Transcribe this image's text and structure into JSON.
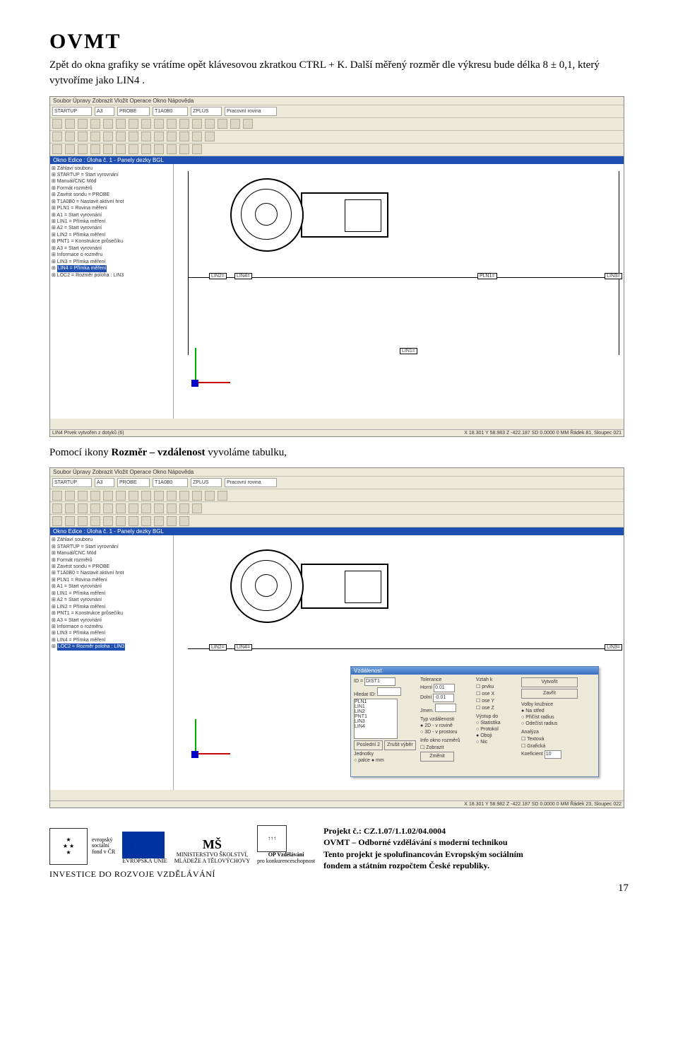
{
  "header_logo": "OVMT",
  "para1": "Zpět do okna grafiky se vrátíme opět klávesovou zkratkou CTRL + K. Další měřený rozměr dle výkresu bude délka 8 ± 0,1, který vytvoříme jako LIN4 .",
  "para2_pre": "Pomocí ikony ",
  "para2_bold": "Rozměr – vzdálenost",
  "para2_post": " vyvoláme tabulku,",
  "app": {
    "menubar": "Soubor  Úpravy  Zobrazit  Vložit  Operace  Okno  Nápověda",
    "tb1": {
      "f1": "STARTUP",
      "f2": "A3",
      "f3": "PROBE",
      "f4": "T1A0B0",
      "f5": "ZPLUS",
      "f6": "Pracovní rovina"
    },
    "title_strip": "Okno Edice : Úloha č. 1 - Panely dezky BGL",
    "tree": [
      "Záhlaví souboru",
      "STARTUP = Start vyrovnání",
      "Manuál/CNC Mód",
      "Formát rozměrů",
      "Zavést sondu = PROBE",
      "T1A0B0 = Nastavit aktivní hrot",
      "PLN1 = Rovina měření",
      "A1 = Start vyrovnání",
      "LIN1 = Přímka měření",
      "A2 = Start vyrovnání",
      "LIN2 = Přímka měření",
      "PNT1 = Konstrukce průsečíku",
      "A3 = Start vyrovnání",
      "Informace o rozměru",
      "LIN3 = Přímka měření",
      "LIN4 = Přímka měření",
      "LOC2 = Rozměr poloha : LIN3"
    ],
    "tree_highlight_idx": 15,
    "labels": {
      "lin1": "LIN1=",
      "lin2": "LIN2=",
      "lin3": "LIN3=",
      "lin4": "LIN4=",
      "pln1": "PLN1="
    },
    "status1": {
      "left": "LIN4 Prvek vytvořen z dotyků (6)",
      "right": "X  18.301    Y  58.983    Z -422.187  SD  0.0000   0      MM      Řádek 81, Sloupec 021"
    },
    "status2": {
      "left": "",
      "right": "X  18.301    Y  58.982    Z -422.187  SD  0.0000   0      MM      Řádek 23, Sloupec 022"
    }
  },
  "dialog": {
    "title": "Vzdálenost",
    "id_lbl": "ID =",
    "id_val": "DIST1",
    "hledat": "Hledat ID:",
    "list": [
      "PLN1",
      "LIN1",
      "LIN2",
      "PNT1",
      "LIN3",
      "LIN4"
    ],
    "tol_lbl": "Tolerance",
    "tol_h": "Horní",
    "tol_h_v": "0.01",
    "tol_d": "Dolní",
    "tol_d_v": "-0.01",
    "jmen": "Jmen.",
    "typ_lbl": "Typ vzdálenosti",
    "typ1": "2D - v rovině",
    "typ2": "3D - v prostoru",
    "vztah_lbl": "Vztah k",
    "vz1": "prvku",
    "vz2": "ose X",
    "vz3": "ose Y",
    "vz4": "ose Z",
    "volby_lbl": "Volby kružnice",
    "vk1": "Na střed",
    "vk2": "Přičíst radius",
    "vk3": "Odečíst radius",
    "analyza": "Analýza",
    "an1": "Textová",
    "an2": "Grafická",
    "an3": "Koeficient",
    "an_val": "10",
    "vystup": "Výstup do",
    "vy1": "Statistika",
    "vy2": "Protokol",
    "vy3": "Oboji",
    "vy4": "Nic",
    "btn_vytvor": "Vytvořit",
    "btn_zavrit": "Zavřít",
    "btn_posl": "Poslední 2",
    "btn_zrus": "Zrušit výběr",
    "jed_lbl": "Jednotky",
    "jed1": "palce",
    "jed2": "mm",
    "info_lbl": "Info okno rozměrů",
    "info1": "Zobrazit",
    "zmenit": "Změnit"
  },
  "footer": {
    "eu_text1": "evropský",
    "eu_text2": "sociální",
    "eu_text3": "fond v ČR",
    "eu_text4": "EVROPSKÁ UNIE",
    "msmt1": "MINISTERSTVO ŠKOLSTVÍ,",
    "msmt2": "MLÁDEŽE A TĚLOVÝCHOVY",
    "op1": "OP Vzdělávání",
    "op2": "pro konkurenceschopnost",
    "invest": "INVESTICE DO ROZVOJE VZDĚLÁVÁNÍ",
    "proj_lbl": "Projekt č.: CZ.1.07/1.1.02/04.0004",
    "proj_name": "OVMT – Odborné vzdělávání s moderní technikou",
    "proj_line1": "Tento projekt je spolufinancován Evropským sociálním",
    "proj_line2": "fondem a státním rozpočtem České republiky."
  },
  "page_number": "17"
}
